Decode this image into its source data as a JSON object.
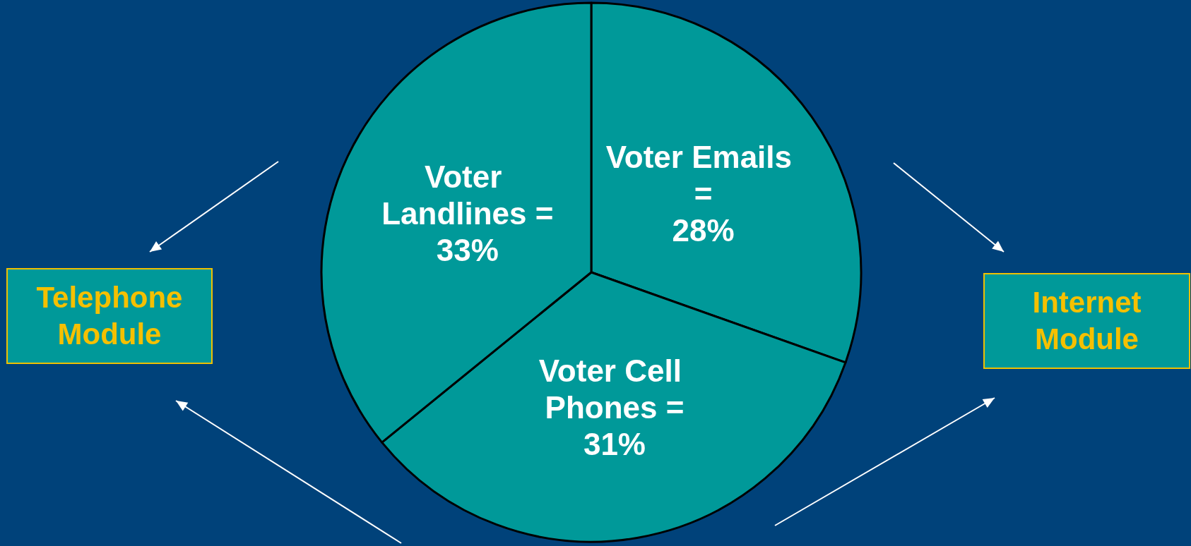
{
  "chart_data": {
    "type": "pie",
    "categories": [
      "Voter Emails =",
      "Voter Cell Phones =",
      "Voter Landlines ="
    ],
    "values": [
      28,
      31,
      33
    ],
    "value_labels": [
      "28%",
      "31%",
      "33%"
    ],
    "colors": [
      "#009999",
      "#009999",
      "#009999"
    ],
    "legend": false,
    "annotations": [
      "Telephone Module",
      "Internet Module"
    ]
  }
}
